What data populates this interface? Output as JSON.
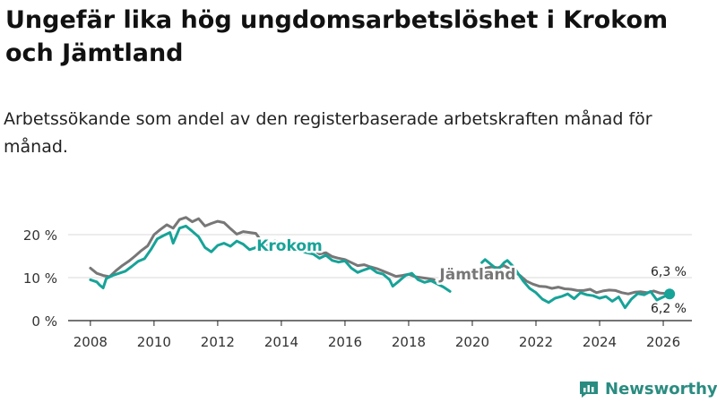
{
  "title": "Ungefär lika hög ungdomsarbetslöshet i Krokom och Jämtland",
  "subtitle": "Arbetssökande som andel av den registerbaserade arbetskraften månad för månad.",
  "brand": {
    "name": "Newsworthy",
    "color": "#2a8c80",
    "logo_icon": "newsworthy-logo-icon"
  },
  "chart_data": {
    "type": "line",
    "title": "",
    "xlabel": "",
    "ylabel": "",
    "xlim": [
      2007.3,
      2026.9
    ],
    "ylim": [
      0,
      25
    ],
    "grid": true,
    "yticks": [
      0,
      10,
      20
    ],
    "ytick_labels": [
      "0 %",
      "10 %",
      "20 %"
    ],
    "xticks": [
      2008,
      2010,
      2012,
      2014,
      2016,
      2018,
      2020,
      2022,
      2024,
      2026
    ],
    "xtick_labels": [
      "2008",
      "2010",
      "2012",
      "2014",
      "2016",
      "2018",
      "2020",
      "2022",
      "2024",
      "2026"
    ],
    "series": [
      {
        "name": "Jämtland",
        "color": "#777777",
        "label": "Jämtland",
        "end_label": "6,3 %",
        "points": [
          [
            2008.0,
            12.2
          ],
          [
            2008.2,
            11.0
          ],
          [
            2008.4,
            10.5
          ],
          [
            2008.6,
            10.2
          ],
          [
            2008.8,
            11.6
          ],
          [
            2009.0,
            12.8
          ],
          [
            2009.2,
            13.8
          ],
          [
            2009.4,
            15.0
          ],
          [
            2009.6,
            16.3
          ],
          [
            2009.8,
            17.4
          ],
          [
            2010.0,
            20.0
          ],
          [
            2010.2,
            21.2
          ],
          [
            2010.4,
            22.3
          ],
          [
            2010.6,
            21.5
          ],
          [
            2010.8,
            23.5
          ],
          [
            2011.0,
            24.0
          ],
          [
            2011.2,
            23.0
          ],
          [
            2011.4,
            23.7
          ],
          [
            2011.6,
            22.0
          ],
          [
            2011.8,
            22.6
          ],
          [
            2012.0,
            23.1
          ],
          [
            2012.2,
            22.8
          ],
          [
            2012.4,
            21.4
          ],
          [
            2012.6,
            20.1
          ],
          [
            2012.8,
            20.7
          ],
          [
            2013.0,
            20.5
          ],
          [
            2013.2,
            20.3
          ],
          [
            2013.4,
            18.2
          ],
          [
            2013.6,
            17.5
          ],
          [
            2013.8,
            18.0
          ],
          [
            2014.0,
            17.8
          ],
          [
            2014.2,
            17.0
          ],
          [
            2014.4,
            17.5
          ],
          [
            2014.6,
            16.8
          ],
          [
            2014.8,
            17.1
          ],
          [
            2015.0,
            16.5
          ],
          [
            2015.2,
            15.5
          ],
          [
            2015.4,
            15.8
          ],
          [
            2015.6,
            14.9
          ],
          [
            2015.8,
            14.5
          ],
          [
            2016.0,
            14.2
          ],
          [
            2016.2,
            13.5
          ],
          [
            2016.4,
            12.8
          ],
          [
            2016.6,
            13.0
          ],
          [
            2016.8,
            12.5
          ],
          [
            2017.0,
            12.1
          ],
          [
            2017.2,
            11.5
          ],
          [
            2017.4,
            10.9
          ],
          [
            2017.6,
            10.3
          ],
          [
            2017.8,
            10.5
          ],
          [
            2018.0,
            10.8
          ],
          [
            2018.2,
            10.2
          ],
          [
            2018.4,
            10.0
          ],
          [
            2018.6,
            9.8
          ],
          [
            2018.8,
            9.5
          ],
          [
            2020.3,
            12.0
          ],
          [
            2020.6,
            12.5
          ],
          [
            2020.8,
            12.3
          ],
          [
            2021.0,
            12.8
          ],
          [
            2021.3,
            11.5
          ],
          [
            2021.5,
            10.5
          ],
          [
            2021.7,
            9.2
          ],
          [
            2021.9,
            8.5
          ],
          [
            2022.1,
            8.0
          ],
          [
            2022.3,
            7.9
          ],
          [
            2022.5,
            7.5
          ],
          [
            2022.7,
            7.8
          ],
          [
            2022.9,
            7.4
          ],
          [
            2023.1,
            7.3
          ],
          [
            2023.3,
            7.0
          ],
          [
            2023.5,
            7.0
          ],
          [
            2023.7,
            7.3
          ],
          [
            2023.9,
            6.5
          ],
          [
            2024.1,
            6.9
          ],
          [
            2024.3,
            7.1
          ],
          [
            2024.5,
            7.0
          ],
          [
            2024.7,
            6.5
          ],
          [
            2024.9,
            6.2
          ],
          [
            2025.1,
            6.6
          ],
          [
            2025.3,
            6.7
          ],
          [
            2025.5,
            6.5
          ],
          [
            2025.7,
            6.9
          ],
          [
            2025.9,
            6.4
          ],
          [
            2026.1,
            6.3
          ]
        ]
      },
      {
        "name": "Krokom",
        "color": "#17a398",
        "label": "Krokom",
        "end_label": "6,2 %",
        "points": [
          [
            2008.0,
            9.5
          ],
          [
            2008.2,
            9.0
          ],
          [
            2008.3,
            8.2
          ],
          [
            2008.4,
            7.6
          ],
          [
            2008.5,
            9.8
          ],
          [
            2008.7,
            10.5
          ],
          [
            2008.9,
            11.0
          ],
          [
            2009.1,
            11.5
          ],
          [
            2009.3,
            12.6
          ],
          [
            2009.5,
            13.8
          ],
          [
            2009.7,
            14.4
          ],
          [
            2009.9,
            16.5
          ],
          [
            2010.1,
            19.0
          ],
          [
            2010.3,
            19.8
          ],
          [
            2010.5,
            20.5
          ],
          [
            2010.6,
            18.0
          ],
          [
            2010.8,
            21.5
          ],
          [
            2011.0,
            22.0
          ],
          [
            2011.2,
            20.8
          ],
          [
            2011.4,
            19.5
          ],
          [
            2011.6,
            17.0
          ],
          [
            2011.8,
            16.0
          ],
          [
            2012.0,
            17.5
          ],
          [
            2012.2,
            18.0
          ],
          [
            2012.4,
            17.3
          ],
          [
            2012.6,
            18.5
          ],
          [
            2012.8,
            17.8
          ],
          [
            2013.0,
            16.5
          ],
          [
            2013.2,
            17.0
          ],
          [
            2013.5,
            18.0
          ],
          [
            2013.8,
            18.5
          ],
          [
            2014.0,
            17.9
          ],
          [
            2014.2,
            17.2
          ],
          [
            2014.4,
            16.8
          ],
          [
            2014.6,
            16.2
          ],
          [
            2014.8,
            15.8
          ],
          [
            2015.0,
            15.5
          ],
          [
            2015.2,
            14.5
          ],
          [
            2015.4,
            15.2
          ],
          [
            2015.6,
            14.0
          ],
          [
            2015.8,
            13.6
          ],
          [
            2016.0,
            13.9
          ],
          [
            2016.2,
            12.2
          ],
          [
            2016.4,
            11.2
          ],
          [
            2016.6,
            11.8
          ],
          [
            2016.8,
            12.3
          ],
          [
            2017.0,
            11.2
          ],
          [
            2017.2,
            10.8
          ],
          [
            2017.4,
            9.5
          ],
          [
            2017.5,
            8.0
          ],
          [
            2017.7,
            9.2
          ],
          [
            2017.9,
            10.5
          ],
          [
            2018.1,
            11.0
          ],
          [
            2018.3,
            9.5
          ],
          [
            2018.5,
            8.9
          ],
          [
            2018.7,
            9.3
          ],
          [
            2019.1,
            7.8
          ],
          [
            2019.3,
            6.8
          ],
          [
            2020.3,
            13.5
          ],
          [
            2020.4,
            14.2
          ],
          [
            2020.6,
            13.0
          ],
          [
            2020.8,
            11.8
          ],
          [
            2021.0,
            13.5
          ],
          [
            2021.1,
            14.0
          ],
          [
            2021.3,
            12.5
          ],
          [
            2021.6,
            9.2
          ],
          [
            2021.8,
            7.5
          ],
          [
            2022.0,
            6.5
          ],
          [
            2022.2,
            5.0
          ],
          [
            2022.4,
            4.2
          ],
          [
            2022.6,
            5.2
          ],
          [
            2022.8,
            5.6
          ],
          [
            2023.0,
            6.2
          ],
          [
            2023.2,
            5.1
          ],
          [
            2023.4,
            6.5
          ],
          [
            2023.6,
            6.0
          ],
          [
            2023.8,
            5.8
          ],
          [
            2024.0,
            5.2
          ],
          [
            2024.2,
            5.6
          ],
          [
            2024.4,
            4.5
          ],
          [
            2024.6,
            5.5
          ],
          [
            2024.8,
            3.0
          ],
          [
            2025.0,
            5.0
          ],
          [
            2025.2,
            6.3
          ],
          [
            2025.4,
            6.0
          ],
          [
            2025.6,
            6.8
          ],
          [
            2025.8,
            4.8
          ],
          [
            2026.0,
            5.5
          ],
          [
            2026.2,
            6.2
          ]
        ]
      }
    ]
  }
}
